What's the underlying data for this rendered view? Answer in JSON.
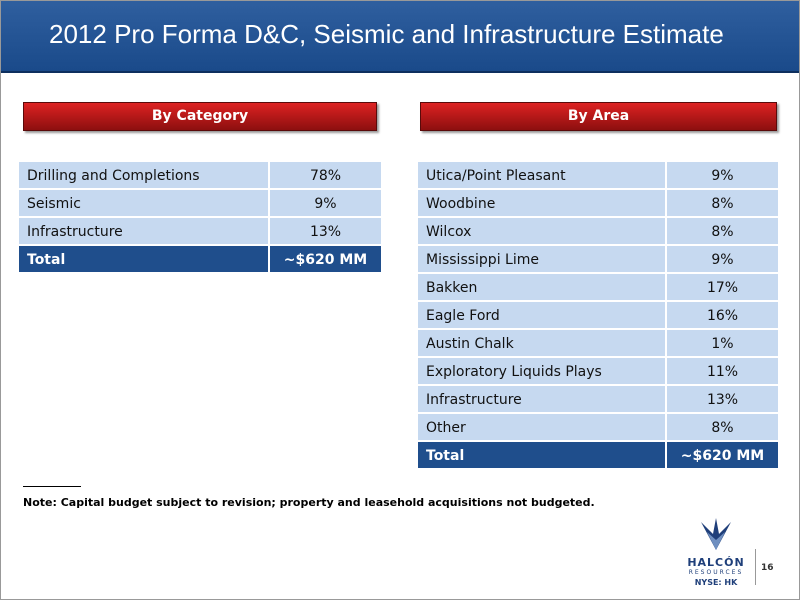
{
  "title": "2012 Pro Forma D&C, Seismic and Infrastructure Estimate",
  "by_category": {
    "heading": "By Category",
    "rows": [
      [
        "Drilling and Completions",
        "78%"
      ],
      [
        "Seismic",
        "9%"
      ],
      [
        "Infrastructure",
        "13%"
      ]
    ],
    "total": [
      "Total",
      "~$620 MM"
    ]
  },
  "by_area": {
    "heading": "By Area",
    "rows": [
      [
        "Utica/Point Pleasant",
        "9%"
      ],
      [
        "Woodbine",
        "8%"
      ],
      [
        "Wilcox",
        "8%"
      ],
      [
        "Mississippi Lime",
        "9%"
      ],
      [
        "Bakken",
        "17%"
      ],
      [
        "Eagle Ford",
        "16%"
      ],
      [
        "Austin Chalk",
        "1%"
      ],
      [
        "Exploratory Liquids Plays",
        "11%"
      ],
      [
        "Infrastructure",
        "13%"
      ],
      [
        "Other",
        "8%"
      ]
    ],
    "total": [
      "Total",
      "~$620 MM"
    ]
  },
  "note": "Note: Capital budget subject to revision; property and leasehold acquisitions not budgeted.",
  "logo": {
    "name": "HALCÓN",
    "sub": "RESOURCES",
    "ticker": "NYSE: HK"
  },
  "page_number": "16"
}
